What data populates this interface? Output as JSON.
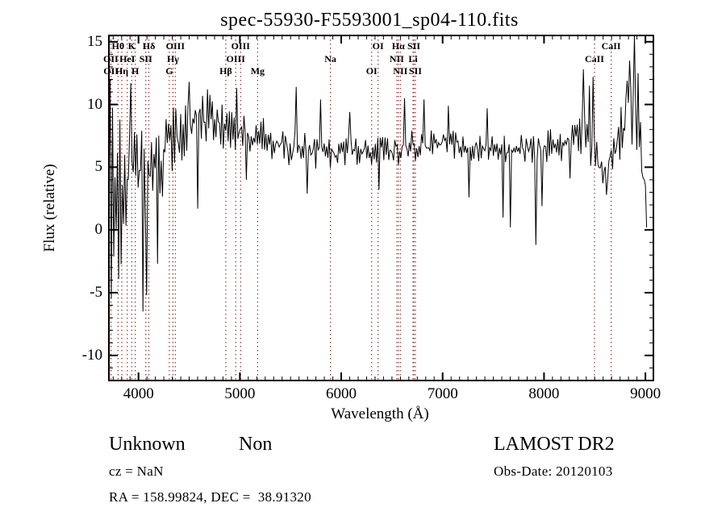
{
  "title": "spec-55930-F5593001_sp04-110.fits",
  "chart_data": {
    "type": "line",
    "title": "spec-55930-F5593001_sp04-110.fits",
    "xlabel": "Wavelength (Å)",
    "ylabel": "Flux (relative)",
    "xlim": [
      3708,
      9079
    ],
    "ylim": [
      -12,
      15.5
    ],
    "xticks": [
      4000,
      5000,
      6000,
      7000,
      8000,
      9000
    ],
    "yticks": [
      -10,
      -5,
      0,
      5,
      10,
      15
    ],
    "x_minors_per_major": 12,
    "y_minor_step": 1,
    "grid": false,
    "legend": "none",
    "line_color": "#000000",
    "marker_line_color": "#993333",
    "spectral_lines": [
      {
        "label": "Hθ",
        "wavelength": 3798,
        "row": 0
      },
      {
        "label": "K",
        "wavelength": 3933,
        "row": 0
      },
      {
        "label": "Hδ",
        "wavelength": 4102,
        "row": 0
      },
      {
        "label": "OIII",
        "wavelength": 4363,
        "row": 0
      },
      {
        "label": "OIII",
        "wavelength": 5007,
        "row": 0
      },
      {
        "label": "OI",
        "wavelength": 6363,
        "row": 0
      },
      {
        "label": "Hα",
        "wavelength": 6563,
        "row": 0
      },
      {
        "label": "SII",
        "wavelength": 6716,
        "row": 0
      },
      {
        "label": "CaII",
        "wavelength": 8662,
        "row": 0
      },
      {
        "label": "OII",
        "wavelength": 3727,
        "row": 1
      },
      {
        "label": "HeI",
        "wavelength": 3889,
        "row": 1
      },
      {
        "label": "SII",
        "wavelength": 4072,
        "row": 1
      },
      {
        "label": "Hγ",
        "wavelength": 4340,
        "row": 1
      },
      {
        "label": "OIII",
        "wavelength": 4959,
        "row": 1
      },
      {
        "label": "Na",
        "wavelength": 5893,
        "row": 1
      },
      {
        "label": "NII",
        "wavelength": 6548,
        "row": 1
      },
      {
        "label": "Li",
        "wavelength": 6708,
        "row": 1
      },
      {
        "label": "CaII",
        "wavelength": 8498,
        "row": 1
      },
      {
        "label": "OII",
        "wavelength": 3729,
        "row": 2
      },
      {
        "label": "Hη",
        "wavelength": 3835,
        "row": 2
      },
      {
        "label": "H",
        "wavelength": 3968,
        "row": 2
      },
      {
        "label": "G",
        "wavelength": 4304,
        "row": 2
      },
      {
        "label": "Hβ",
        "wavelength": 4861,
        "row": 2
      },
      {
        "label": "Mg",
        "wavelength": 5175,
        "row": 2
      },
      {
        "label": "OI",
        "wavelength": 6300,
        "row": 2
      },
      {
        "label": "NII",
        "wavelength": 6583,
        "row": 2
      },
      {
        "label": "SII",
        "wavelength": 6731,
        "row": 2
      }
    ],
    "spectrum_envelope": [
      [
        3708,
        1.5,
        11.0
      ],
      [
        3740,
        2.2,
        8.5
      ],
      [
        3800,
        3.2,
        6.5
      ],
      [
        3880,
        3.9,
        5.0
      ],
      [
        3970,
        4.3,
        4.2
      ],
      [
        4070,
        4.7,
        3.6
      ],
      [
        4200,
        5.4,
        3.0
      ],
      [
        4320,
        6.6,
        2.5
      ],
      [
        4460,
        8.2,
        2.0
      ],
      [
        4620,
        8.9,
        1.8
      ],
      [
        4780,
        8.5,
        1.7
      ],
      [
        4950,
        8.2,
        1.6
      ],
      [
        5100,
        7.7,
        1.5
      ],
      [
        5300,
        7.0,
        1.4
      ],
      [
        5500,
        6.5,
        1.4
      ],
      [
        5700,
        6.1,
        1.3
      ],
      [
        5950,
        6.2,
        1.1
      ],
      [
        6200,
        6.3,
        1.0
      ],
      [
        6450,
        6.3,
        1.0
      ],
      [
        6700,
        6.6,
        1.1
      ],
      [
        6950,
        6.9,
        1.0
      ],
      [
        7200,
        6.8,
        1.0
      ],
      [
        7450,
        6.6,
        1.1
      ],
      [
        7700,
        6.3,
        1.2
      ],
      [
        7950,
        6.5,
        1.1
      ],
      [
        8200,
        6.9,
        1.2
      ],
      [
        8370,
        8.0,
        1.7
      ],
      [
        8480,
        6.2,
        1.5
      ],
      [
        8570,
        4.8,
        1.1
      ],
      [
        8670,
        5.8,
        1.4
      ],
      [
        8780,
        8.0,
        2.0
      ],
      [
        8880,
        9.5,
        2.5
      ],
      [
        8940,
        7.0,
        2.3
      ],
      [
        9020,
        1.5,
        1.0
      ]
    ],
    "spectrum_spikes": [
      [
        3715,
        -10.3
      ],
      [
        3725,
        12.0
      ],
      [
        3921,
        11.7
      ],
      [
        4040,
        -6.5
      ],
      [
        4078,
        -5.2
      ],
      [
        4185,
        -2.7
      ],
      [
        4500,
        11.8
      ],
      [
        4585,
        1.7
      ],
      [
        4680,
        11.2
      ],
      [
        4970,
        11.3
      ],
      [
        5065,
        4.0
      ],
      [
        5551,
        11.4
      ],
      [
        5660,
        2.9
      ],
      [
        5790,
        10.4
      ],
      [
        6080,
        9.4
      ],
      [
        6370,
        3.2
      ],
      [
        6620,
        10.5
      ],
      [
        6810,
        10.4
      ],
      [
        7060,
        9.9
      ],
      [
        7255,
        2.6
      ],
      [
        7445,
        9.7
      ],
      [
        7600,
        1.0
      ],
      [
        7665,
        0.2
      ],
      [
        7915,
        -1.2
      ],
      [
        7975,
        1.9
      ],
      [
        8255,
        4.1
      ],
      [
        8390,
        12.8
      ],
      [
        8445,
        11.5
      ],
      [
        8482,
        12.2
      ],
      [
        8610,
        2.8
      ],
      [
        8761,
        9.8
      ],
      [
        8825,
        11.9
      ],
      [
        8849,
        13.5
      ],
      [
        8897,
        15.6
      ],
      [
        8929,
        12.5
      ],
      [
        9010,
        0.2
      ]
    ]
  },
  "annotations": {
    "classification": "Unknown",
    "subclass": "Non",
    "cz": "cz = NaN",
    "coords": "RA = 158.99824, DEC =  38.91320",
    "survey": "LAMOST DR2",
    "obs_date": "Obs-Date: 20120103"
  }
}
